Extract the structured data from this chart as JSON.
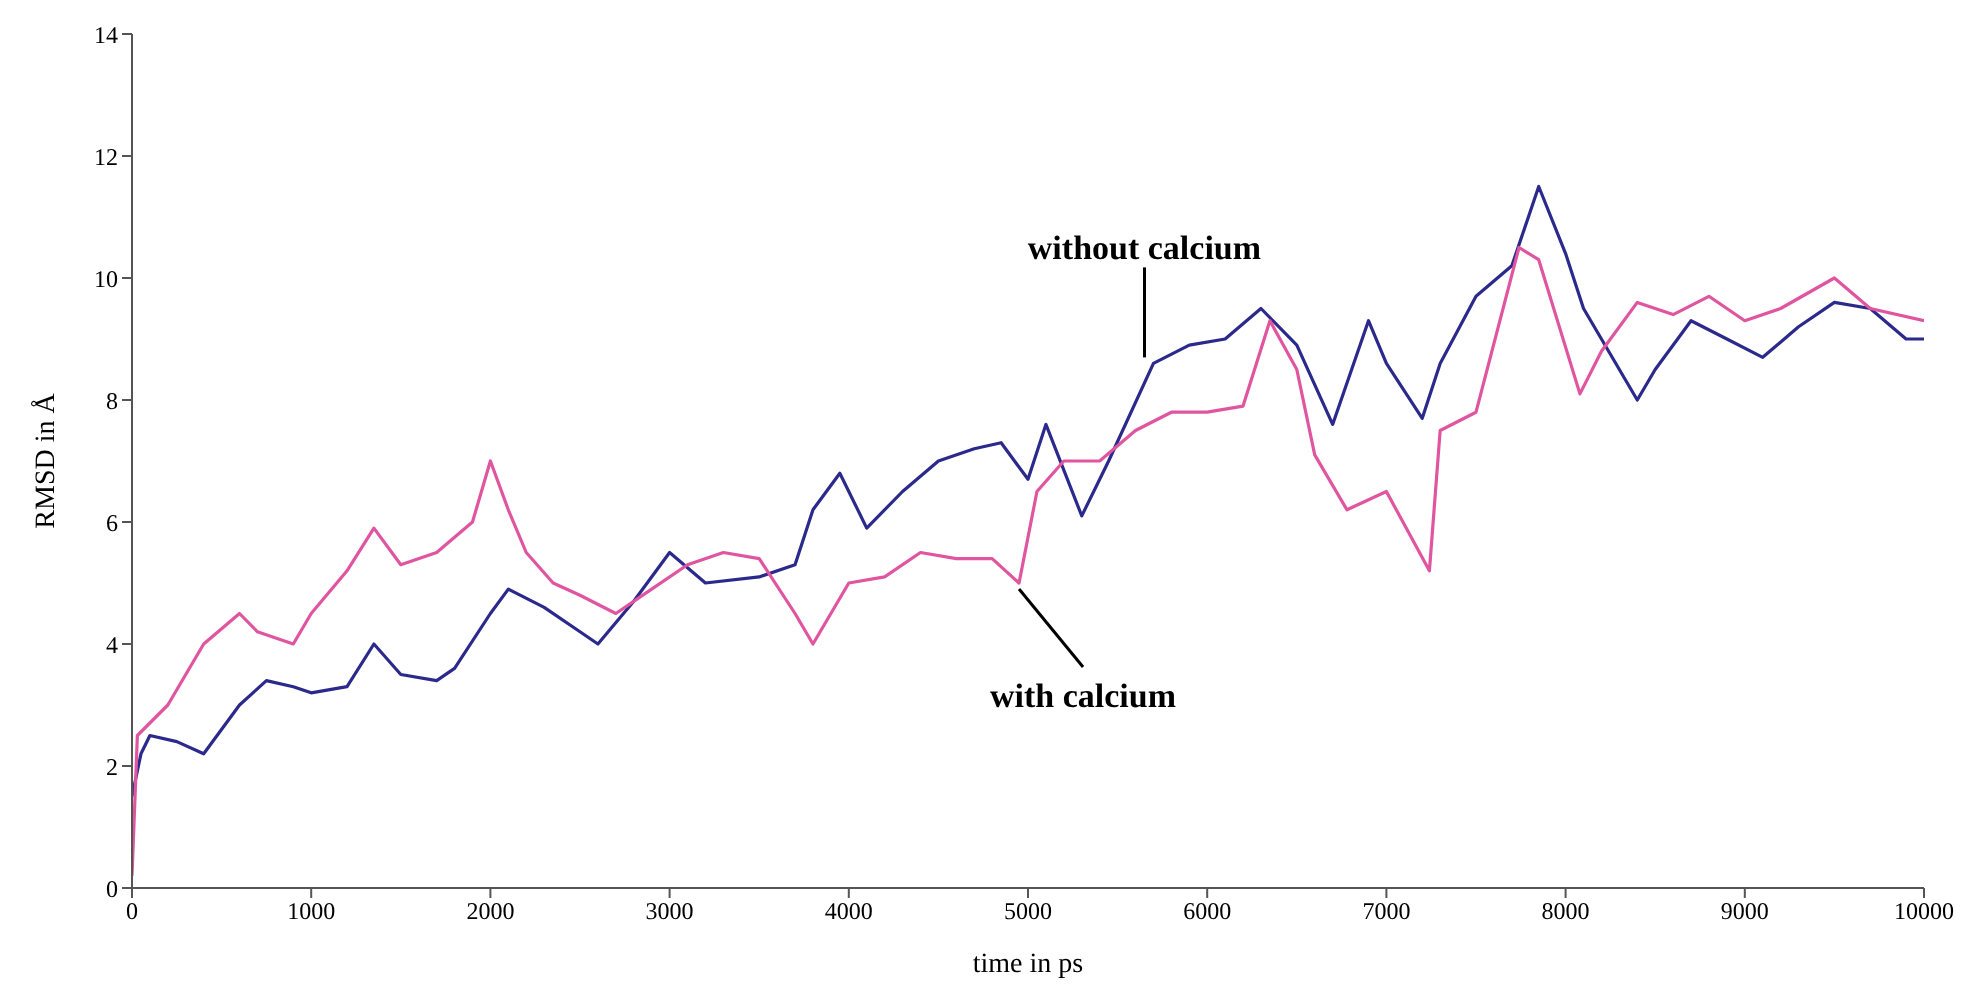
{
  "chart_data": {
    "type": "line",
    "xlabel": "time in ps",
    "ylabel": "RMSD in Å",
    "xlim": [
      0,
      10000
    ],
    "xticks": [
      0,
      1000,
      2000,
      3000,
      4000,
      5000,
      6000,
      7000,
      8000,
      9000,
      10000
    ],
    "ylim": [
      0,
      14
    ],
    "yticks": [
      0,
      2,
      4,
      6,
      8,
      10,
      12,
      14
    ],
    "grid": false,
    "marker": "none",
    "line_style": "solid",
    "series": [
      {
        "color": "#2b2a8c",
        "x": [
          0,
          50,
          100,
          250,
          400,
          600,
          750,
          900,
          1000,
          1200,
          1350,
          1500,
          1700,
          1800,
          2000,
          2100,
          2300,
          2500,
          2600,
          2800,
          3000,
          3200,
          3500,
          3700,
          3800,
          3950,
          4100,
          4300,
          4500,
          4700,
          4850,
          5000,
          5100,
          5300,
          5450,
          5700,
          5900,
          6100,
          6300,
          6500,
          6700,
          6900,
          7000,
          7200,
          7300,
          7500,
          7700,
          7850,
          8000,
          8100,
          8200,
          8400,
          8500,
          8700,
          8900,
          9100,
          9300,
          9500,
          9700,
          9900,
          10000
        ],
        "values": [
          1.5,
          2.2,
          2.5,
          2.4,
          2.2,
          3.0,
          3.4,
          3.3,
          3.2,
          3.3,
          4.0,
          3.5,
          3.4,
          3.6,
          4.5,
          4.9,
          4.6,
          4.2,
          4.0,
          4.7,
          5.5,
          5.0,
          5.1,
          5.3,
          6.2,
          6.8,
          5.9,
          6.5,
          7.0,
          7.2,
          7.3,
          6.7,
          7.6,
          6.1,
          7.0,
          8.6,
          8.9,
          9.0,
          9.5,
          8.9,
          7.6,
          9.3,
          8.6,
          7.7,
          8.6,
          9.7,
          10.2,
          11.5,
          10.4,
          9.5,
          9.0,
          8.0,
          8.5,
          9.3,
          9.0,
          8.7,
          9.2,
          9.6,
          9.5,
          9.0,
          9.0
        ]
      },
      {
        "color": "#e0559f",
        "x": [
          0,
          30,
          200,
          400,
          600,
          700,
          900,
          1000,
          1200,
          1350,
          1500,
          1700,
          1900,
          2000,
          2100,
          2200,
          2350,
          2500,
          2700,
          2900,
          3100,
          3300,
          3500,
          3700,
          3800,
          4000,
          4200,
          4400,
          4600,
          4800,
          4950,
          5050,
          5200,
          5400,
          5600,
          5800,
          6000,
          6200,
          6350,
          6500,
          6600,
          6780,
          7000,
          7240,
          7300,
          7500,
          7740,
          7850,
          8080,
          8200,
          8400,
          8600,
          8800,
          9000,
          9200,
          9500,
          9700,
          10000
        ],
        "values": [
          0.2,
          2.5,
          3.0,
          4.0,
          4.5,
          4.2,
          4.0,
          4.5,
          5.2,
          5.9,
          5.3,
          5.5,
          6.0,
          7.0,
          6.2,
          5.5,
          5.0,
          4.8,
          4.5,
          4.9,
          5.3,
          5.5,
          5.4,
          4.5,
          4.0,
          5.0,
          5.1,
          5.5,
          5.4,
          5.4,
          5.0,
          6.5,
          7.0,
          7.0,
          7.5,
          7.8,
          7.8,
          7.9,
          9.3,
          8.5,
          7.1,
          6.2,
          6.5,
          5.2,
          7.5,
          7.8,
          10.5,
          10.3,
          8.1,
          8.8,
          9.6,
          9.4,
          9.7,
          9.3,
          9.5,
          10.0,
          9.5,
          9.3
        ]
      }
    ],
    "annotations": [
      {
        "text": "without calcium",
        "x": 5650,
        "y": 8.6
      },
      {
        "text": "with calcium",
        "x": 4950,
        "y": 5.0
      }
    ]
  }
}
